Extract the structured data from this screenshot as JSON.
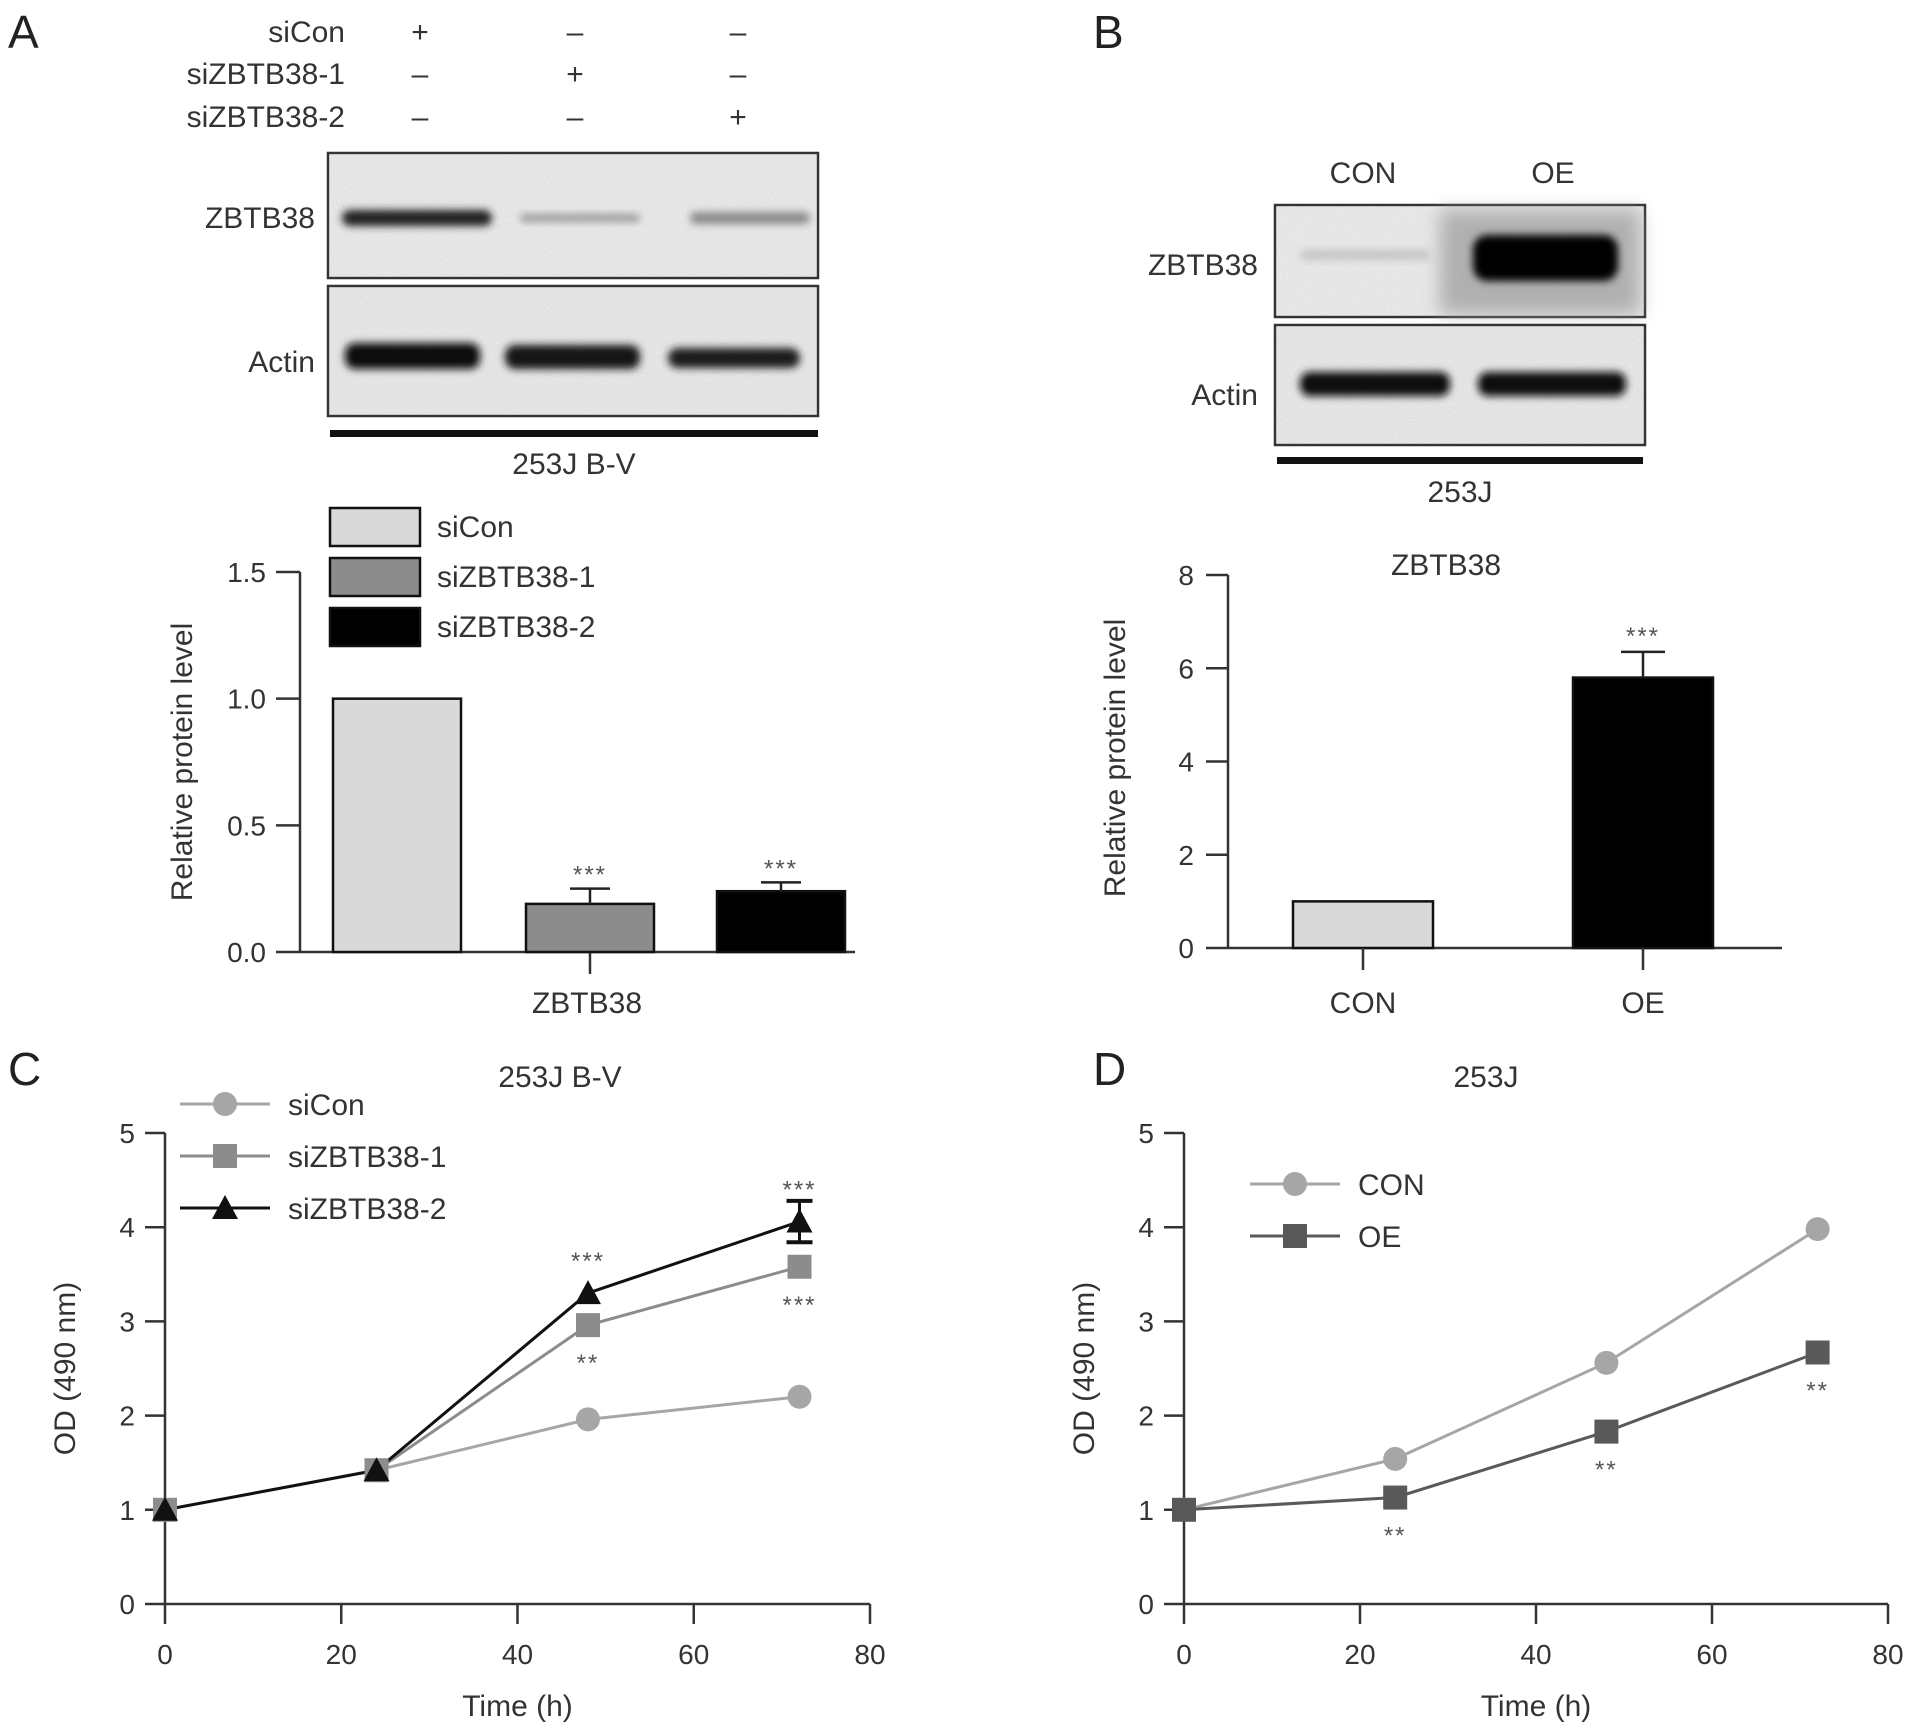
{
  "panels": {
    "A": {
      "letter": "A",
      "blot": {
        "condition_rows": [
          {
            "label": "siCon",
            "marks": [
              "+",
              "–",
              "–"
            ]
          },
          {
            "label": "siZBTB38-1",
            "marks": [
              "–",
              "+",
              "–"
            ]
          },
          {
            "label": "siZBTB38-2",
            "marks": [
              "–",
              "–",
              "+"
            ]
          }
        ],
        "band_labels": [
          "ZBTB38",
          "Actin"
        ],
        "cell_line": "253J B-V"
      }
    },
    "B": {
      "letter": "B",
      "blot": {
        "lane_labels": [
          "CON",
          "OE"
        ],
        "band_labels": [
          "ZBTB38",
          "Actin"
        ],
        "cell_line": "253J"
      }
    },
    "C": {
      "letter": "C"
    },
    "D": {
      "letter": "D"
    }
  },
  "chart_data": [
    {
      "panel": "A",
      "type": "bar",
      "title": "",
      "xlabel": "ZBTB38",
      "ylabel": "Relative protein level",
      "ylim": [
        0,
        1.5
      ],
      "yticks": [
        "0.0",
        "0.5",
        "1.0",
        "1.5"
      ],
      "legend_position": "top",
      "series": [
        {
          "name": "siCon",
          "value": 1.0,
          "error": 0,
          "color": "#d9d9d9",
          "significance": ""
        },
        {
          "name": "siZBTB38-1",
          "value": 0.19,
          "error": 0.06,
          "color": "#8c8c8c",
          "significance": "***"
        },
        {
          "name": "siZBTB38-2",
          "value": 0.24,
          "error": 0.035,
          "color": "#000000",
          "significance": "***"
        }
      ]
    },
    {
      "panel": "B",
      "type": "bar",
      "title": "ZBTB38",
      "xlabel": "",
      "ylabel": "Relative protein level",
      "ylim": [
        0,
        8
      ],
      "yticks": [
        "0",
        "2",
        "4",
        "6",
        "8"
      ],
      "categories": [
        "CON",
        "OE"
      ],
      "values": [
        1.0,
        5.8
      ],
      "errors": [
        0,
        0.55
      ],
      "colors": [
        "#d9d9d9",
        "#000000"
      ],
      "significance": [
        "",
        "***"
      ]
    },
    {
      "panel": "C",
      "type": "line",
      "title": "253J B-V",
      "xlabel": "Time (h)",
      "ylabel": "OD (490 nm)",
      "xlim": [
        0,
        80
      ],
      "ylim": [
        0,
        5
      ],
      "xticks": [
        "0",
        "20",
        "40",
        "60",
        "80"
      ],
      "yticks": [
        "0",
        "1",
        "2",
        "3",
        "4",
        "5"
      ],
      "legend_position": "top-left",
      "x": [
        0,
        24,
        48,
        72
      ],
      "series": [
        {
          "name": "siCon",
          "marker": "circle",
          "color": "#a6a6a6",
          "values": [
            1.0,
            1.42,
            1.96,
            2.2
          ],
          "labels_above": [
            "",
            "",
            "",
            ""
          ],
          "labels_below": [
            "",
            "",
            "",
            ""
          ]
        },
        {
          "name": "siZBTB38-1",
          "marker": "square",
          "color": "#8c8c8c",
          "values": [
            1.0,
            1.42,
            2.96,
            3.58
          ],
          "labels_above": [
            "",
            "",
            "",
            ""
          ],
          "labels_below": [
            "",
            "",
            "**",
            "***"
          ]
        },
        {
          "name": "siZBTB38-2",
          "marker": "triangle",
          "color": "#111111",
          "values": [
            1.0,
            1.42,
            3.3,
            4.06
          ],
          "error_last": 0.22,
          "labels_above": [
            "",
            "",
            "***",
            "***"
          ],
          "labels_below": [
            "",
            "",
            "",
            ""
          ]
        }
      ]
    },
    {
      "panel": "D",
      "type": "line",
      "title": "253J",
      "xlabel": "Time (h)",
      "ylabel": "OD (490 nm)",
      "xlim": [
        0,
        80
      ],
      "ylim": [
        0,
        5
      ],
      "xticks": [
        "0",
        "20",
        "40",
        "60",
        "80"
      ],
      "yticks": [
        "0",
        "1",
        "2",
        "3",
        "4",
        "5"
      ],
      "legend_position": "top-left",
      "x": [
        0,
        24,
        48,
        72
      ],
      "series": [
        {
          "name": "CON",
          "marker": "circle",
          "color": "#a6a6a6",
          "values": [
            1.0,
            1.54,
            2.56,
            3.98
          ],
          "labels_below": [
            "",
            "",
            "",
            ""
          ]
        },
        {
          "name": "OE",
          "marker": "square",
          "color": "#595959",
          "values": [
            1.0,
            1.13,
            1.83,
            2.67
          ],
          "labels_below": [
            "",
            "**",
            "**",
            "**"
          ]
        }
      ]
    }
  ]
}
